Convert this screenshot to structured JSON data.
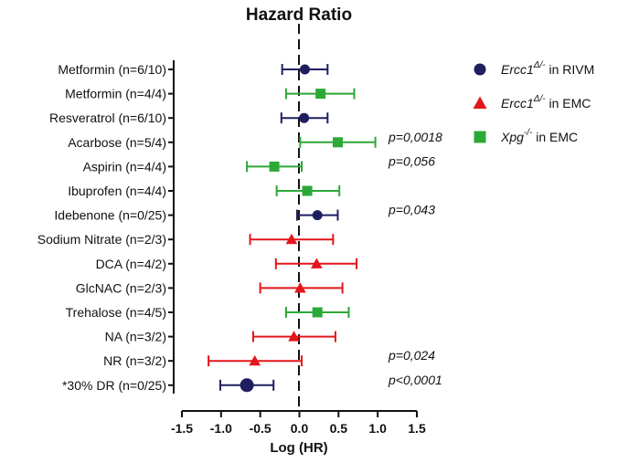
{
  "chart_data": {
    "type": "forest",
    "title": "Hazard Ratio",
    "xlabel": "Log (HR)",
    "xlim": [
      -1.5,
      1.5
    ],
    "xticks": [
      "-1.5",
      "-1.0",
      "-0.5",
      "0.0",
      "0.5",
      "1.0",
      "1.5"
    ],
    "xtick_values": [
      -1.5,
      -1.0,
      -0.5,
      0.0,
      0.5,
      1.0,
      1.5
    ],
    "series": [
      {
        "name": "Ercc1 in RIVM",
        "name_italic": "Ercc1",
        "name_sup": "Δ/-",
        "name_rest": " in RIVM",
        "color": "#1f1f5f",
        "marker": "circle"
      },
      {
        "name": "Ercc1 in EMC",
        "name_italic": "Ercc1",
        "name_sup": "Δ/-",
        "name_rest": " in EMC",
        "color": "#e3161b",
        "marker": "triangle"
      },
      {
        "name": "Xpg in EMC",
        "name_italic": "Xpg",
        "name_sup": "-/-",
        "name_rest": " in EMC",
        "color": "#2ca836",
        "marker": "square"
      }
    ],
    "rows": [
      {
        "label": "Metformin (n=6/10)",
        "series": 0,
        "value": 0.07,
        "low": -0.22,
        "high": 0.36
      },
      {
        "label": "Metformin (n=4/4)",
        "series": 2,
        "value": 0.27,
        "low": -0.17,
        "high": 0.7
      },
      {
        "label": "Resveratrol (n=6/10)",
        "series": 0,
        "value": 0.06,
        "low": -0.23,
        "high": 0.36
      },
      {
        "label": "Acarbose (n=5/4)",
        "series": 2,
        "value": 0.49,
        "low": 0.01,
        "high": 0.97
      },
      {
        "label": "Aspirin (n=4/4)",
        "series": 2,
        "value": -0.32,
        "low": -0.67,
        "high": 0.03
      },
      {
        "label": "Ibuprofen (n=4/4)",
        "series": 2,
        "value": 0.1,
        "low": -0.29,
        "high": 0.51
      },
      {
        "label": "Idebenone (n=0/25)",
        "series": 0,
        "value": 0.23,
        "low": -0.03,
        "high": 0.49
      },
      {
        "label": "Sodium Nitrate (n=2/3)",
        "series": 1,
        "value": -0.1,
        "low": -0.63,
        "high": 0.43
      },
      {
        "label": "DCA (n=4/2)",
        "series": 1,
        "value": 0.22,
        "low": -0.3,
        "high": 0.73
      },
      {
        "label": "GlcNAC (n=2/3)",
        "series": 1,
        "value": 0.01,
        "low": -0.5,
        "high": 0.55
      },
      {
        "label": "Trehalose (n=4/5)",
        "series": 2,
        "value": 0.23,
        "low": -0.17,
        "high": 0.63
      },
      {
        "label": "NA (n=3/2)",
        "series": 1,
        "value": -0.07,
        "low": -0.59,
        "high": 0.46
      },
      {
        "label": "NR (n=3/2)",
        "series": 1,
        "value": -0.57,
        "low": -1.16,
        "high": 0.03
      },
      {
        "label": "*30% DR (n=0/25)",
        "series": 0,
        "value": -0.67,
        "low": -1.01,
        "high": -0.33
      }
    ],
    "annotations": [
      {
        "text": "p=0,0018",
        "row": 3
      },
      {
        "text": "p=0,056",
        "row": 4
      },
      {
        "text": "p=0,043",
        "row": 6
      },
      {
        "text": "p=0,024",
        "row": 12
      },
      {
        "text": "p<0,0001",
        "row": 13
      }
    ]
  }
}
